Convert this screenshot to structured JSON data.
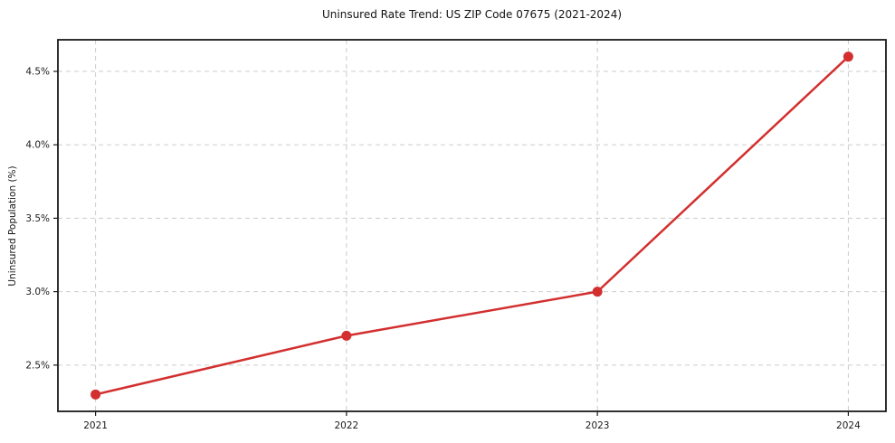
{
  "chart_data": {
    "type": "line",
    "title": "Uninsured Rate Trend: US ZIP Code 07675 (2021-2024)",
    "ylabel": "Uninsured Population (%)",
    "xlabel": "",
    "x": [
      2021,
      2022,
      2023,
      2024
    ],
    "x_tick_labels": [
      "2021",
      "2022",
      "2023",
      "2024"
    ],
    "values": [
      2.3,
      2.7,
      3.0,
      4.6
    ],
    "y_ticks": [
      2.5,
      3.0,
      3.5,
      4.0,
      4.5
    ],
    "y_tick_labels": [
      "2.5%",
      "3.0%",
      "3.5%",
      "4.0%",
      "4.5%"
    ],
    "xlim": [
      2020.85,
      2024.15
    ],
    "ylim": [
      2.185,
      4.715
    ],
    "grid": "dashed-both-axes",
    "legend": "none",
    "line_color": "#d32f2f",
    "marker": "circle",
    "grid_color": "#cccccc",
    "axis_color": "#1a1a1a",
    "background": "#ffffff"
  }
}
